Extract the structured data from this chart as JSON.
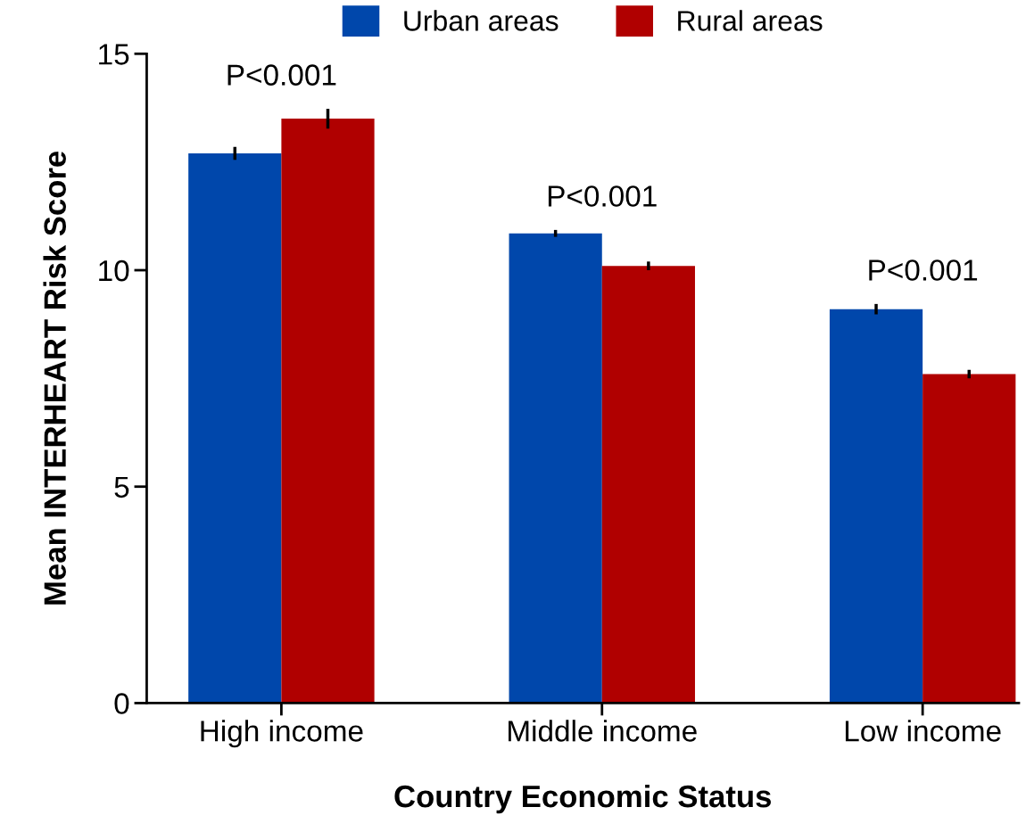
{
  "chart_data": {
    "type": "bar",
    "xlabel": "Country Economic Status",
    "ylabel": "Mean INTERHEART Risk Score",
    "categories": [
      "High income",
      "Middle income",
      "Low income"
    ],
    "series": [
      {
        "name": "Urban areas",
        "color": "#0047ab",
        "values": [
          12.7,
          10.85,
          9.1
        ],
        "errors": [
          0.15,
          0.08,
          0.12
        ]
      },
      {
        "name": "Rural areas",
        "color": "#b00000",
        "values": [
          13.5,
          10.1,
          7.6
        ],
        "errors": [
          0.23,
          0.1,
          0.1
        ]
      }
    ],
    "ylim": [
      0,
      15
    ],
    "yticks": [
      0,
      5,
      10,
      15
    ],
    "grid": false,
    "legend": "top",
    "annotations": [
      "P<0.001",
      "P<0.001",
      "P<0.001"
    ]
  }
}
